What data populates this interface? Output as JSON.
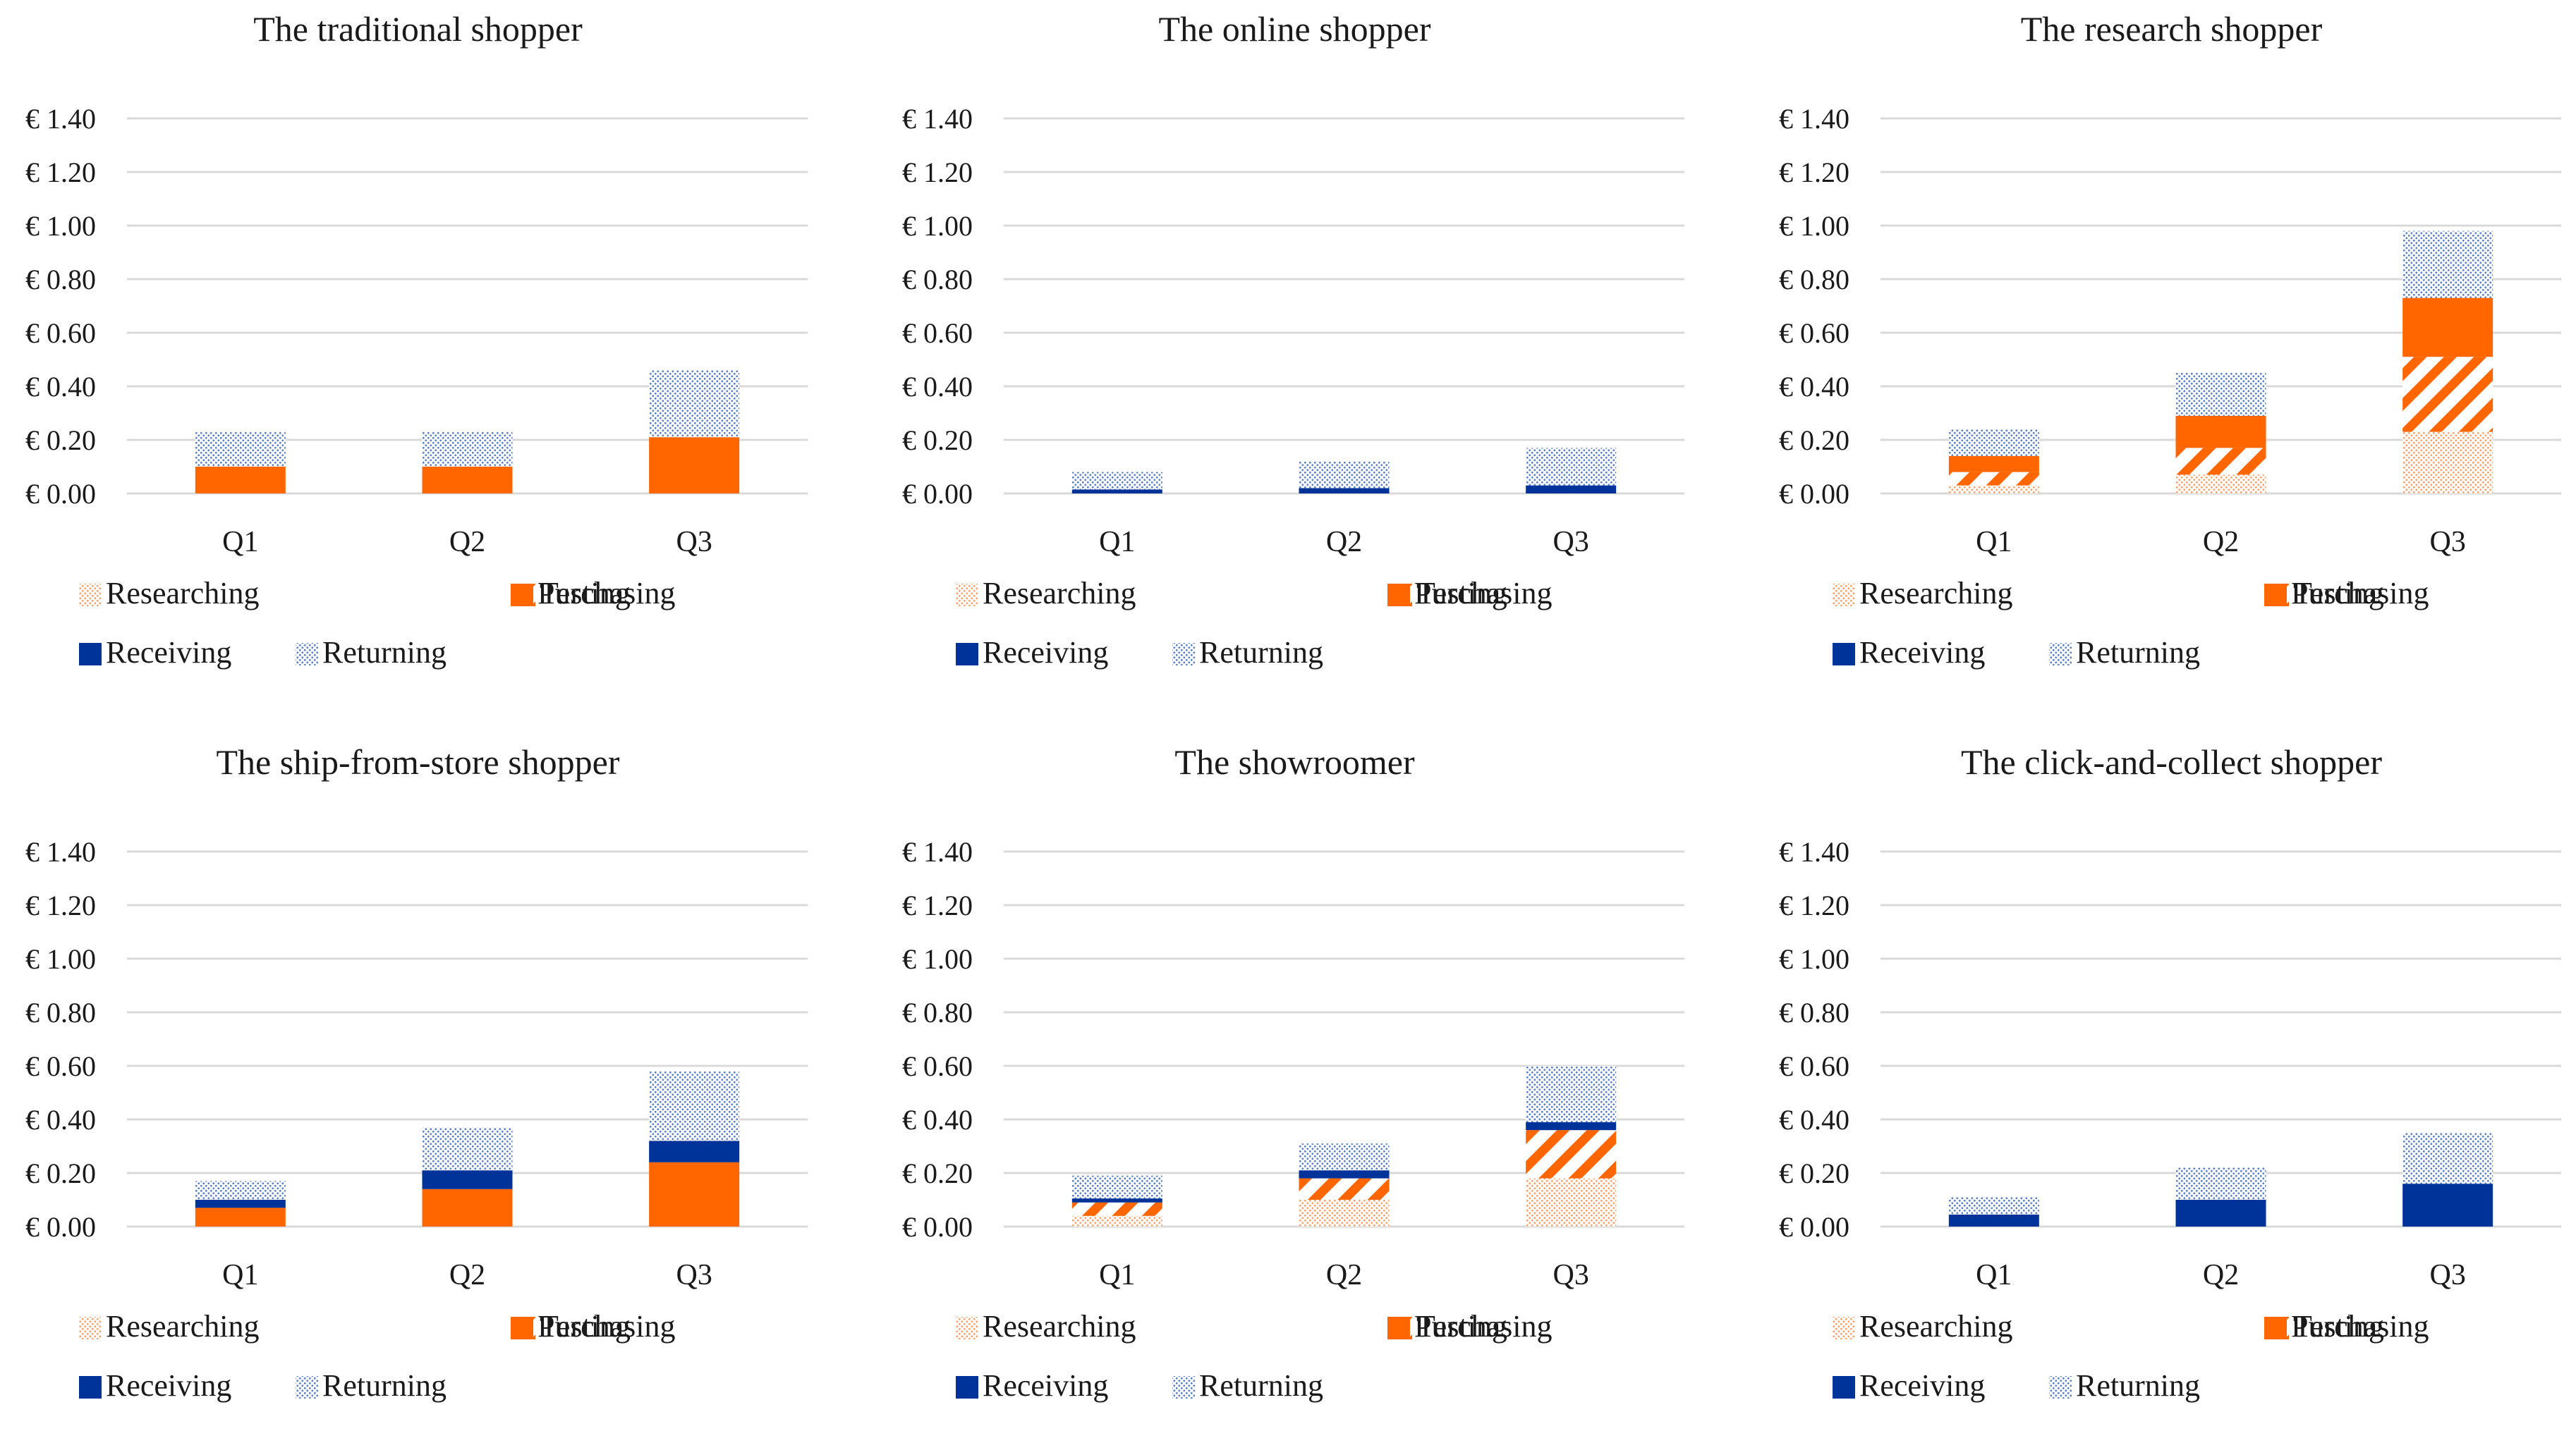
{
  "colors": {
    "orange": "#ff6600",
    "orange_light": "#f9b38a",
    "blue": "#003399",
    "blue_light": "#7f9fd4"
  },
  "legend": [
    {
      "name": "Researching",
      "pattern": "dots-orange"
    },
    {
      "name": "Testing",
      "pattern": "hatch-orange"
    },
    {
      "name": "Purchasing",
      "pattern": "solid-orange"
    },
    {
      "name": "Receiving",
      "pattern": "solid-blue"
    },
    {
      "name": "Returning",
      "pattern": "dots-blue"
    }
  ],
  "chart_data": [
    {
      "type": "bar",
      "stacked": true,
      "title": "The traditional  shopper",
      "categories": [
        "Q1",
        "Q2",
        "Q3"
      ],
      "ylim": [
        0,
        1.4
      ],
      "y_ticks": [
        "€ 0.00",
        "€ 0.20",
        "€ 0.40",
        "€ 0.60",
        "€ 0.80",
        "€ 1.00",
        "€ 1.20",
        "€ 1.40"
      ],
      "series": [
        {
          "name": "Researching",
          "values": [
            0,
            0,
            0
          ]
        },
        {
          "name": "Testing",
          "values": [
            0,
            0,
            0
          ]
        },
        {
          "name": "Purchasing",
          "values": [
            0.1,
            0.1,
            0.21
          ]
        },
        {
          "name": "Receiving",
          "values": [
            0,
            0,
            0
          ]
        },
        {
          "name": "Returning",
          "values": [
            0.13,
            0.13,
            0.25
          ]
        }
      ]
    },
    {
      "type": "bar",
      "stacked": true,
      "title": "The online  shopper",
      "categories": [
        "Q1",
        "Q2",
        "Q3"
      ],
      "ylim": [
        0,
        1.4
      ],
      "y_ticks": [
        "€ 0.00",
        "€ 0.20",
        "€ 0.40",
        "€ 0.60",
        "€ 0.80",
        "€ 1.00",
        "€ 1.20",
        "€ 1.40"
      ],
      "series": [
        {
          "name": "Researching",
          "values": [
            0,
            0,
            0
          ]
        },
        {
          "name": "Testing",
          "values": [
            0,
            0,
            0
          ]
        },
        {
          "name": "Purchasing",
          "values": [
            0,
            0,
            0
          ]
        },
        {
          "name": "Receiving",
          "values": [
            0.015,
            0.02,
            0.03
          ]
        },
        {
          "name": "Returning",
          "values": [
            0.065,
            0.1,
            0.14
          ]
        }
      ]
    },
    {
      "type": "bar",
      "stacked": true,
      "title": "The research  shopper",
      "categories": [
        "Q1",
        "Q2",
        "Q3"
      ],
      "ylim": [
        0,
        1.4
      ],
      "y_ticks": [
        "€ 0.00",
        "€ 0.20",
        "€ 0.40",
        "€ 0.60",
        "€ 0.80",
        "€ 1.00",
        "€ 1.20",
        "€ 1.40"
      ],
      "series": [
        {
          "name": "Researching",
          "values": [
            0.03,
            0.07,
            0.23
          ]
        },
        {
          "name": "Testing",
          "values": [
            0.05,
            0.1,
            0.28
          ]
        },
        {
          "name": "Purchasing",
          "values": [
            0.06,
            0.12,
            0.22
          ]
        },
        {
          "name": "Receiving",
          "values": [
            0,
            0,
            0
          ]
        },
        {
          "name": "Returning",
          "values": [
            0.1,
            0.16,
            0.25
          ]
        }
      ]
    },
    {
      "type": "bar",
      "stacked": true,
      "title": "The ship-from-store  shopper",
      "categories": [
        "Q1",
        "Q2",
        "Q3"
      ],
      "ylim": [
        0,
        1.4
      ],
      "y_ticks": [
        "€ 0.00",
        "€ 0.20",
        "€ 0.40",
        "€ 0.60",
        "€ 0.80",
        "€ 1.00",
        "€ 1.20",
        "€ 1.40"
      ],
      "series": [
        {
          "name": "Researching",
          "values": [
            0,
            0,
            0
          ]
        },
        {
          "name": "Testing",
          "values": [
            0,
            0,
            0
          ]
        },
        {
          "name": "Purchasing",
          "values": [
            0.07,
            0.14,
            0.24
          ]
        },
        {
          "name": "Receiving",
          "values": [
            0.03,
            0.07,
            0.08
          ]
        },
        {
          "name": "Returning",
          "values": [
            0.07,
            0.16,
            0.26
          ]
        }
      ]
    },
    {
      "type": "bar",
      "stacked": true,
      "title": "The showroomer",
      "categories": [
        "Q1",
        "Q2",
        "Q3"
      ],
      "ylim": [
        0,
        1.4
      ],
      "y_ticks": [
        "€ 0.00",
        "€ 0.20",
        "€ 0.40",
        "€ 0.60",
        "€ 0.80",
        "€ 1.00",
        "€ 1.20",
        "€ 1.40"
      ],
      "series": [
        {
          "name": "Researching",
          "values": [
            0.04,
            0.1,
            0.18
          ]
        },
        {
          "name": "Testing",
          "values": [
            0.05,
            0.08,
            0.18
          ]
        },
        {
          "name": "Purchasing",
          "values": [
            0,
            0,
            0
          ]
        },
        {
          "name": "Receiving",
          "values": [
            0.015,
            0.03,
            0.03
          ]
        },
        {
          "name": "Returning",
          "values": [
            0.085,
            0.1,
            0.21
          ]
        }
      ]
    },
    {
      "type": "bar",
      "stacked": true,
      "title": "The click-and-collect  shopper",
      "categories": [
        "Q1",
        "Q2",
        "Q3"
      ],
      "ylim": [
        0,
        1.4
      ],
      "y_ticks": [
        "€ 0.00",
        "€ 0.20",
        "€ 0.40",
        "€ 0.60",
        "€ 0.80",
        "€ 1.00",
        "€ 1.20",
        "€ 1.40"
      ],
      "series": [
        {
          "name": "Researching",
          "values": [
            0,
            0,
            0
          ]
        },
        {
          "name": "Testing",
          "values": [
            0,
            0,
            0
          ]
        },
        {
          "name": "Purchasing",
          "values": [
            0,
            0,
            0
          ]
        },
        {
          "name": "Receiving",
          "values": [
            0.045,
            0.1,
            0.16
          ]
        },
        {
          "name": "Returning",
          "values": [
            0.065,
            0.12,
            0.19
          ]
        }
      ]
    }
  ]
}
